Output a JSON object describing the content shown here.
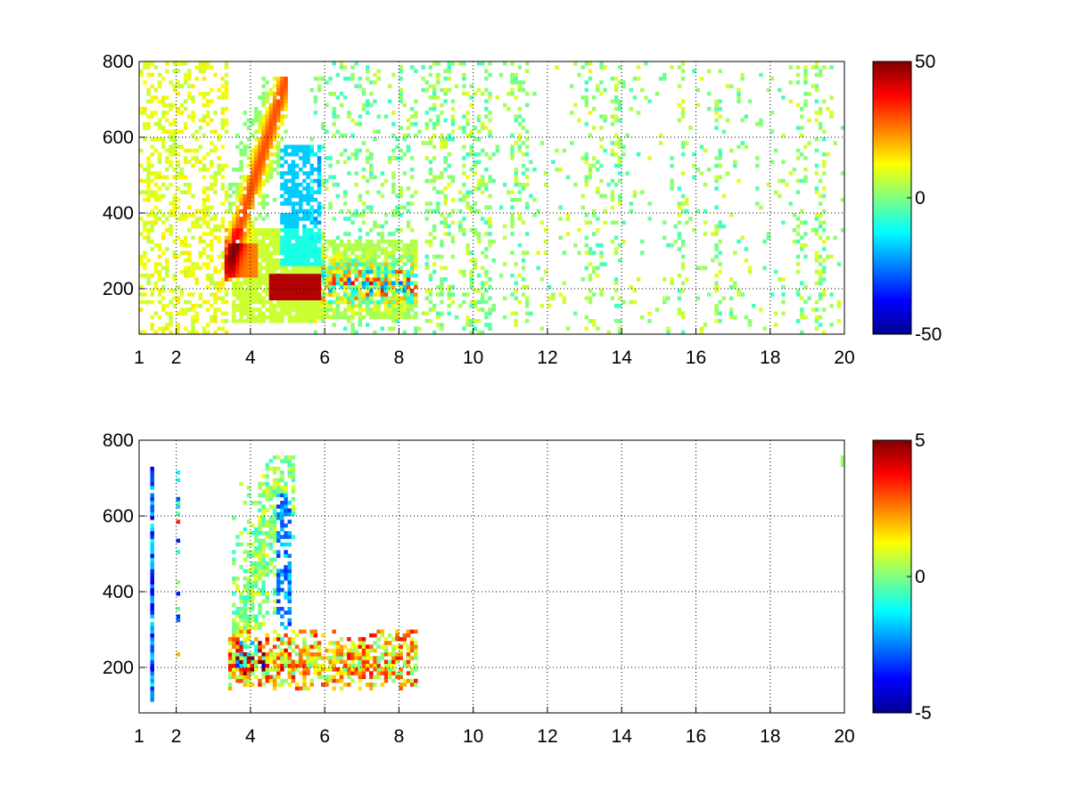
{
  "chart_data": [
    {
      "type": "heatmap",
      "title": "",
      "xlabel": "",
      "ylabel": "",
      "xlim": [
        1,
        20
      ],
      "ylim": [
        80,
        800
      ],
      "x_ticks": [
        1,
        2,
        4,
        6,
        8,
        10,
        12,
        14,
        16,
        18,
        20
      ],
      "x_tick_labels": [
        "1",
        "2",
        "4",
        "6",
        "8",
        "10",
        "12",
        "14",
        "16",
        "18",
        "20"
      ],
      "y_ticks": [
        200,
        400,
        600,
        800
      ],
      "y_tick_labels": [
        "200",
        "400",
        "600",
        "800"
      ],
      "grid": true,
      "colormap": "jet",
      "clim": [
        -50,
        50
      ],
      "colorbar_ticks": [
        50,
        0,
        -50
      ],
      "colorbar_tick_labels": [
        "50",
        "0",
        "-50"
      ],
      "features": [
        {
          "description": "rising ridge of positive values",
          "x_range": [
            3.4,
            4.9
          ],
          "y_range": [
            230,
            700
          ],
          "value": 30
        },
        {
          "description": "strong positive band",
          "x": [
            4.6,
            5.8
          ],
          "y": 200,
          "value": 40
        },
        {
          "description": "mixed strong values band",
          "x": [
            5.9,
            8.4
          ],
          "y": 215,
          "value": -30
        },
        {
          "description": "negative patch",
          "x": [
            4.9,
            5.8
          ],
          "y_range": [
            280,
            560
          ],
          "value": -15
        }
      ]
    },
    {
      "type": "heatmap",
      "title": "",
      "xlabel": "",
      "ylabel": "",
      "xlim": [
        1,
        20
      ],
      "ylim": [
        80,
        800
      ],
      "x_ticks": [
        1,
        2,
        4,
        6,
        8,
        10,
        12,
        14,
        16,
        18,
        20
      ],
      "x_tick_labels": [
        "1",
        "2",
        "4",
        "6",
        "8",
        "10",
        "12",
        "14",
        "16",
        "18",
        "20"
      ],
      "y_ticks": [
        200,
        400,
        600,
        800
      ],
      "y_tick_labels": [
        "200",
        "400",
        "600",
        "800"
      ],
      "grid": true,
      "colormap": "jet",
      "clim": [
        -5,
        5
      ],
      "colorbar_ticks": [
        5,
        0,
        -5
      ],
      "colorbar_tick_labels": [
        "5",
        "0",
        "-5"
      ],
      "features": [
        {
          "description": "vertical streak",
          "x": 1.4,
          "y_range": [
            110,
            730
          ],
          "value": -4
        },
        {
          "description": "rising ridge",
          "x_range": [
            3.6,
            5.0
          ],
          "y_range": [
            200,
            700
          ],
          "value": 0.5
        },
        {
          "description": "band",
          "x": [
            4.0,
            8.4
          ],
          "y": 210,
          "value": 2
        }
      ]
    }
  ]
}
